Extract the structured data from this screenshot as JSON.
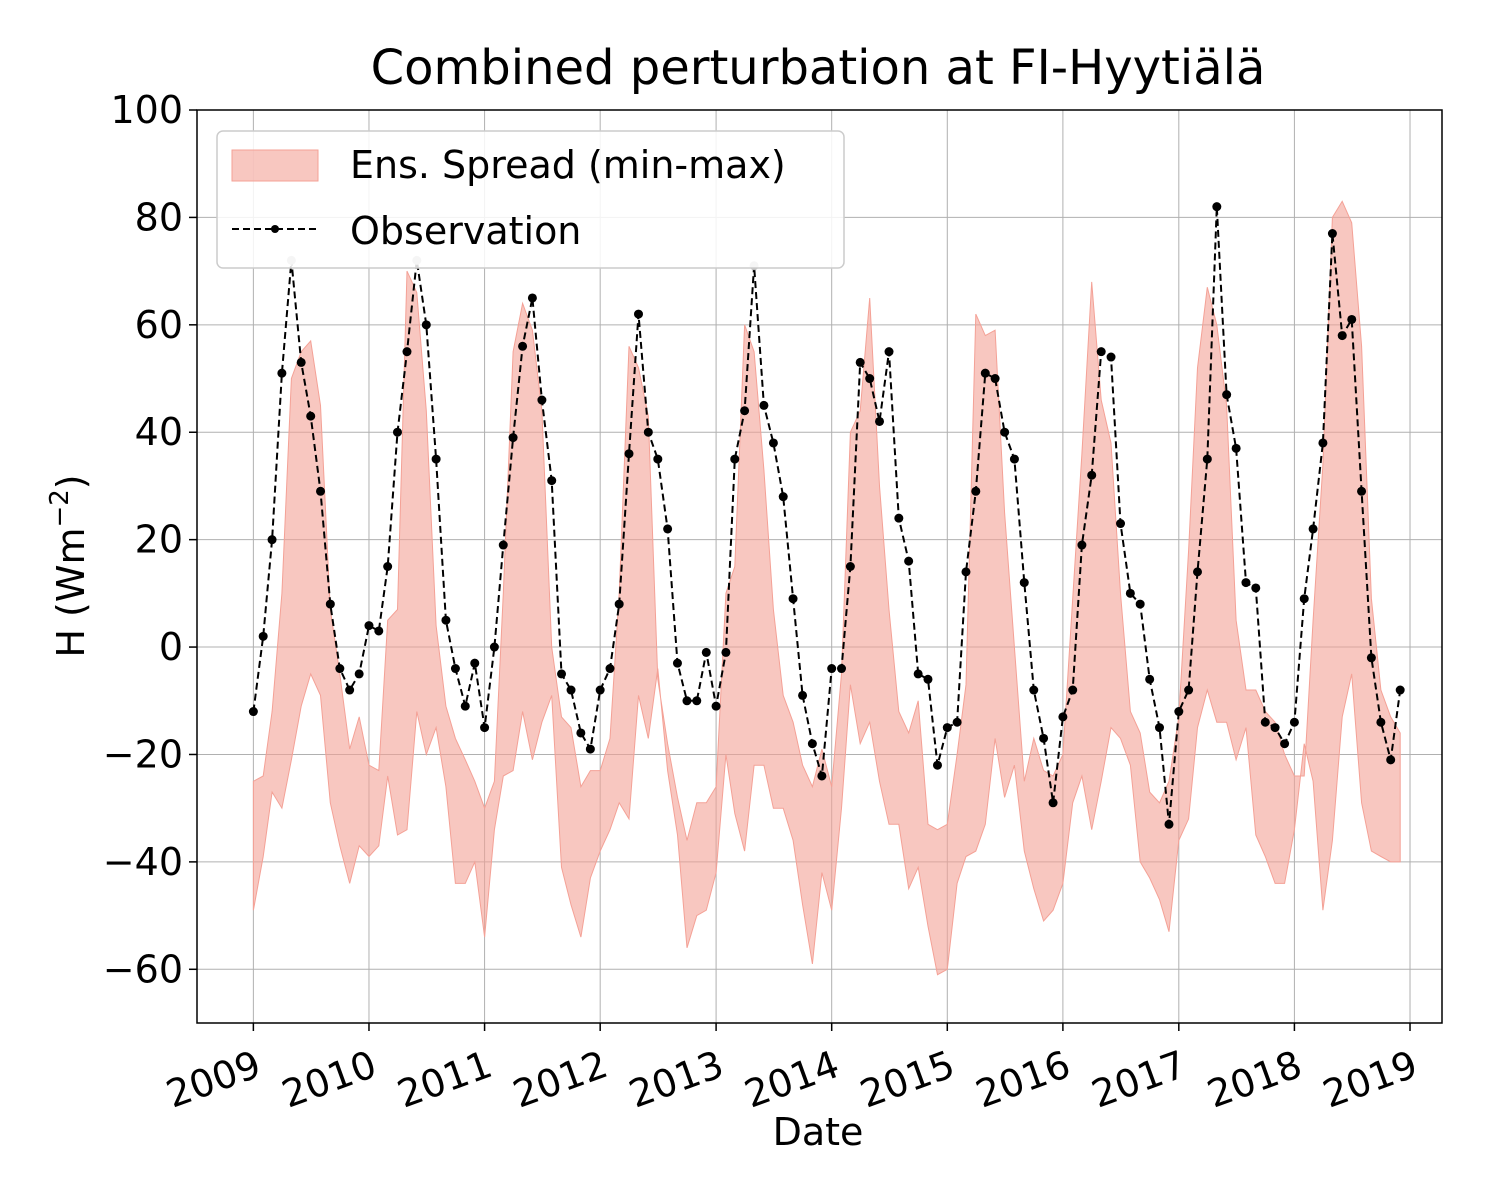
{
  "chart_data": {
    "type": "line",
    "title": "Combined perturbation at FI-Hyytiälä",
    "xlabel": "Date",
    "ylabel": "H  (Wm",
    "ylabel_sup": "−2",
    "ylabel_close": ")",
    "ylim": [
      -70,
      100
    ],
    "yticks": [
      -60,
      -40,
      -20,
      0,
      20,
      40,
      60,
      80,
      100
    ],
    "ytick_labels": [
      "−60",
      "−40",
      "−20",
      "0",
      "20",
      "40",
      "60",
      "80",
      "100"
    ],
    "xlim": [
      "2008-07-07",
      "2019-04-12"
    ],
    "xticks": [
      "2009",
      "2010",
      "2011",
      "2012",
      "2013",
      "2014",
      "2015",
      "2016",
      "2017",
      "2018",
      "2019"
    ],
    "grid": true,
    "legend": {
      "location": "upper-left",
      "entries": [
        "Ens. Spread (min-max)",
        "Observation"
      ]
    },
    "colors": {
      "spread": "#f4a196",
      "observation": "#000000",
      "clipped_marker": "#bbbbbb"
    },
    "start_month": "2009-01",
    "observation": [
      -12,
      2,
      20,
      51,
      72,
      53,
      43,
      29,
      8,
      -4,
      -8,
      -5,
      4,
      3,
      15,
      40,
      55,
      72,
      60,
      35,
      5,
      -4,
      -11,
      -3,
      -15,
      0,
      19,
      39,
      56,
      65,
      46,
      31,
      -5,
      -8,
      -16,
      -19,
      -8,
      -4,
      8,
      36,
      62,
      40,
      35,
      22,
      -3,
      -10,
      -10,
      -1,
      -11,
      -1,
      35,
      44,
      71,
      45,
      38,
      28,
      9,
      -9,
      -18,
      -24,
      -4,
      -4,
      15,
      53,
      50,
      42,
      55,
      24,
      16,
      -5,
      -6,
      -22,
      -15,
      -14,
      14,
      29,
      51,
      50,
      40,
      35,
      12,
      -8,
      -17,
      -29,
      -13,
      -8,
      19,
      32,
      55,
      54,
      23,
      10,
      8,
      -6,
      -15,
      -33,
      -12,
      -8,
      14,
      35,
      82,
      47,
      37,
      12,
      11,
      -14,
      -15,
      -18,
      -14,
      9,
      22,
      38,
      77,
      58,
      61,
      29,
      -2,
      -14,
      -21,
      -8
    ],
    "ens_min": [
      -49,
      -39,
      -27,
      -30,
      -21,
      -11,
      -5,
      -9,
      -29,
      -37,
      -44,
      -37,
      -39,
      -37,
      -24,
      -35,
      -34,
      -12,
      -20,
      -15,
      -26,
      -44,
      -44,
      -40,
      -54,
      -34,
      -24,
      -23,
      -12,
      -21,
      -14,
      -9,
      -41,
      -48,
      -54,
      -43,
      -38,
      -34,
      -29,
      -32,
      -9,
      -17,
      -4,
      -23,
      -35,
      -56,
      -50,
      -49,
      -42,
      -20,
      -31,
      -38,
      -22,
      -22,
      -30,
      -30,
      -36,
      -48,
      -59,
      -42,
      -49,
      -30,
      -7,
      -18,
      -14,
      -25,
      -33,
      -33,
      -45,
      -41,
      -52,
      -61,
      -60,
      -44,
      -39,
      -38,
      -33,
      -17,
      -28,
      -22,
      -38,
      -45,
      -51,
      -49,
      -44,
      -29,
      -24,
      -34,
      -25,
      -15,
      -17,
      -22,
      -40,
      -43,
      -47,
      -53,
      -36,
      -32,
      -15,
      -8,
      -14,
      -14,
      -21,
      -15,
      -35,
      -39,
      -44,
      -44,
      -34,
      -18,
      -25,
      -49,
      -36,
      -13,
      -5,
      -29,
      -38,
      -39,
      -40,
      -40
    ],
    "ens_max": [
      -25,
      -24,
      -12,
      10,
      50,
      55,
      57,
      45,
      7,
      -5,
      -19,
      -13,
      -22,
      -23,
      5,
      7,
      70,
      66,
      44,
      4,
      -11,
      -17,
      -21,
      -25,
      -30,
      -25,
      10,
      55,
      64,
      59,
      44,
      0,
      -13,
      -15,
      -26,
      -23,
      -23,
      -17,
      10,
      56,
      52,
      43,
      -6,
      -18,
      -28,
      -36,
      -29,
      -29,
      -26,
      10,
      15,
      60,
      55,
      33,
      7,
      -9,
      -14,
      -22,
      -26,
      -19,
      -26,
      -5,
      40,
      44,
      65,
      30,
      7,
      -12,
      -16,
      -10,
      -33,
      -34,
      -33,
      -20,
      -7,
      62,
      58,
      59,
      25,
      0,
      -25,
      -17,
      -23,
      -24,
      -20,
      9,
      36,
      68,
      46,
      38,
      10,
      -12,
      -16,
      -27,
      -29,
      -25,
      -13,
      18,
      52,
      67,
      60,
      45,
      5,
      -8,
      -8,
      -12,
      -14,
      -20,
      -24,
      -24,
      5,
      34,
      80,
      83,
      79,
      56,
      9,
      -8,
      -13,
      -16
    ]
  }
}
